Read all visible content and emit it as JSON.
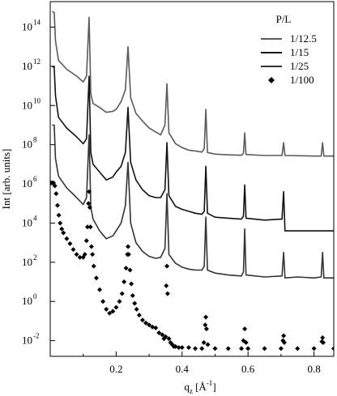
{
  "chart_data": {
    "type": "line",
    "title": "",
    "xlabel": "q_z [Å^-1]",
    "ylabel": "Int [arb. units]",
    "xlim": [
      0.0,
      0.86
    ],
    "yscale": "log",
    "ylim_log10": [
      -2.8,
      15.3
    ],
    "xticks": [
      {
        "value": 0.2,
        "label": "0.2"
      },
      {
        "value": 0.4,
        "label": "0.4"
      },
      {
        "value": 0.6,
        "label": "0.6"
      },
      {
        "value": 0.8,
        "label": "0.8"
      }
    ],
    "yticks": [
      {
        "exp": -2,
        "label": "10^-2"
      },
      {
        "exp": 0,
        "label": "10^0"
      },
      {
        "exp": 2,
        "label": "10^2"
      },
      {
        "exp": 4,
        "label": "10^4"
      },
      {
        "exp": 6,
        "label": "10^6"
      },
      {
        "exp": 8,
        "label": "10^8"
      },
      {
        "exp": 10,
        "label": "10^10"
      },
      {
        "exp": 12,
        "label": "10^12"
      },
      {
        "exp": 14,
        "label": "10^14"
      }
    ],
    "grid": false,
    "legend_title": "P/L",
    "legend_position": "top-right",
    "bragg_peaks_qz": [
      0.118,
      0.236,
      0.354,
      0.472,
      0.59,
      0.708,
      0.826
    ],
    "series": [
      {
        "name": "1/12.5",
        "style": "line",
        "color": "#5a5a5a",
        "points_log10": [
          [
            0.006,
            14.8
          ],
          [
            0.012,
            14.75
          ],
          [
            0.016,
            13.3
          ],
          [
            0.025,
            12.3
          ],
          [
            0.05,
            11.85
          ],
          [
            0.08,
            11.5
          ],
          [
            0.1,
            11.2
          ],
          [
            0.11,
            11.5
          ],
          [
            0.118,
            14.5
          ],
          [
            0.123,
            10.6
          ],
          [
            0.13,
            10.1
          ],
          [
            0.15,
            9.9
          ],
          [
            0.17,
            9.65
          ],
          [
            0.19,
            9.7
          ],
          [
            0.2,
            9.8
          ],
          [
            0.215,
            10.2
          ],
          [
            0.228,
            10.8
          ],
          [
            0.236,
            13.0
          ],
          [
            0.244,
            10.4
          ],
          [
            0.26,
            9.6
          ],
          [
            0.28,
            9.2
          ],
          [
            0.3,
            8.85
          ],
          [
            0.32,
            8.65
          ],
          [
            0.335,
            8.5
          ],
          [
            0.348,
            9.0
          ],
          [
            0.354,
            11.1
          ],
          [
            0.36,
            8.6
          ],
          [
            0.38,
            8.05
          ],
          [
            0.4,
            7.85
          ],
          [
            0.42,
            7.72
          ],
          [
            0.44,
            7.68
          ],
          [
            0.46,
            7.62
          ],
          [
            0.467,
            7.8
          ],
          [
            0.472,
            9.8
          ],
          [
            0.477,
            7.6
          ],
          [
            0.5,
            7.52
          ],
          [
            0.54,
            7.48
          ],
          [
            0.58,
            7.46
          ],
          [
            0.586,
            7.55
          ],
          [
            0.59,
            8.6
          ],
          [
            0.594,
            7.5
          ],
          [
            0.65,
            7.45
          ],
          [
            0.703,
            7.45
          ],
          [
            0.708,
            8.1
          ],
          [
            0.712,
            7.45
          ],
          [
            0.8,
            7.42
          ],
          [
            0.822,
            7.42
          ],
          [
            0.826,
            8.1
          ],
          [
            0.83,
            7.42
          ],
          [
            0.86,
            7.42
          ]
        ]
      },
      {
        "name": "1/15",
        "style": "line",
        "color": "#111111",
        "points_log10": [
          [
            0.006,
            12.0
          ],
          [
            0.012,
            11.95
          ],
          [
            0.016,
            10.5
          ],
          [
            0.025,
            9.4
          ],
          [
            0.05,
            8.85
          ],
          [
            0.08,
            8.4
          ],
          [
            0.1,
            8.05
          ],
          [
            0.11,
            8.3
          ],
          [
            0.118,
            11.5
          ],
          [
            0.123,
            7.6
          ],
          [
            0.13,
            7.0
          ],
          [
            0.15,
            6.6
          ],
          [
            0.17,
            6.2
          ],
          [
            0.19,
            6.35
          ],
          [
            0.2,
            6.6
          ],
          [
            0.215,
            6.9
          ],
          [
            0.228,
            7.6
          ],
          [
            0.236,
            9.9
          ],
          [
            0.244,
            7.1
          ],
          [
            0.26,
            6.2
          ],
          [
            0.28,
            5.7
          ],
          [
            0.3,
            5.4
          ],
          [
            0.32,
            5.3
          ],
          [
            0.335,
            5.3
          ],
          [
            0.348,
            5.7
          ],
          [
            0.354,
            8.1
          ],
          [
            0.36,
            5.4
          ],
          [
            0.38,
            4.85
          ],
          [
            0.4,
            4.7
          ],
          [
            0.42,
            4.6
          ],
          [
            0.44,
            4.5
          ],
          [
            0.46,
            4.45
          ],
          [
            0.467,
            4.6
          ],
          [
            0.472,
            6.9
          ],
          [
            0.477,
            4.5
          ],
          [
            0.5,
            4.3
          ],
          [
            0.54,
            4.25
          ],
          [
            0.58,
            4.2
          ],
          [
            0.586,
            4.35
          ],
          [
            0.59,
            5.95
          ],
          [
            0.594,
            4.25
          ],
          [
            0.65,
            4.15
          ],
          [
            0.7,
            4.2
          ],
          [
            0.703,
            4.2
          ],
          [
            0.708,
            5.6
          ],
          [
            0.712,
            3.6
          ],
          [
            0.8,
            3.6
          ],
          [
            0.86,
            3.6
          ]
        ]
      },
      {
        "name": "1/25",
        "style": "line",
        "color": "#333333",
        "points_log10": [
          [
            0.006,
            9.0
          ],
          [
            0.012,
            9.0
          ],
          [
            0.016,
            7.3
          ],
          [
            0.025,
            6.4
          ],
          [
            0.05,
            5.8
          ],
          [
            0.08,
            5.3
          ],
          [
            0.1,
            4.95
          ],
          [
            0.11,
            5.3
          ],
          [
            0.118,
            8.5
          ],
          [
            0.123,
            4.8
          ],
          [
            0.13,
            4.2
          ],
          [
            0.15,
            3.6
          ],
          [
            0.17,
            3.2
          ],
          [
            0.19,
            3.35
          ],
          [
            0.2,
            3.6
          ],
          [
            0.215,
            4.0
          ],
          [
            0.228,
            4.9
          ],
          [
            0.236,
            7.1
          ],
          [
            0.244,
            4.0
          ],
          [
            0.26,
            3.0
          ],
          [
            0.28,
            2.55
          ],
          [
            0.3,
            2.3
          ],
          [
            0.32,
            2.2
          ],
          [
            0.335,
            2.25
          ],
          [
            0.348,
            2.7
          ],
          [
            0.354,
            5.5
          ],
          [
            0.36,
            2.4
          ],
          [
            0.38,
            1.95
          ],
          [
            0.4,
            1.75
          ],
          [
            0.42,
            1.65
          ],
          [
            0.44,
            1.6
          ],
          [
            0.46,
            1.6
          ],
          [
            0.467,
            1.8
          ],
          [
            0.472,
            4.3
          ],
          [
            0.477,
            1.6
          ],
          [
            0.5,
            1.45
          ],
          [
            0.54,
            1.35
          ],
          [
            0.58,
            1.3
          ],
          [
            0.586,
            1.5
          ],
          [
            0.59,
            3.7
          ],
          [
            0.594,
            1.35
          ],
          [
            0.65,
            1.25
          ],
          [
            0.703,
            1.3
          ],
          [
            0.708,
            2.5
          ],
          [
            0.712,
            1.2
          ],
          [
            0.75,
            1.25
          ],
          [
            0.8,
            1.2
          ],
          [
            0.822,
            1.25
          ],
          [
            0.826,
            2.5
          ],
          [
            0.83,
            1.2
          ],
          [
            0.86,
            1.2
          ]
        ]
      },
      {
        "name": "1/100",
        "style": "markers",
        "marker": "diamond",
        "color": "#000000",
        "points_log10": [
          [
            0.002,
            6.05
          ],
          [
            0.006,
            6.05
          ],
          [
            0.01,
            6.05
          ],
          [
            0.014,
            5.9
          ],
          [
            0.018,
            5.5
          ],
          [
            0.022,
            4.9
          ],
          [
            0.026,
            4.4
          ],
          [
            0.03,
            4.0
          ],
          [
            0.035,
            3.7
          ],
          [
            0.04,
            3.5
          ],
          [
            0.05,
            3.2
          ],
          [
            0.06,
            2.95
          ],
          [
            0.07,
            2.65
          ],
          [
            0.08,
            2.4
          ],
          [
            0.09,
            2.25
          ],
          [
            0.1,
            2.25
          ],
          [
            0.105,
            2.4
          ],
          [
            0.11,
            3.1
          ],
          [
            0.113,
            3.8
          ],
          [
            0.116,
            5.0
          ],
          [
            0.118,
            5.6
          ],
          [
            0.12,
            4.8
          ],
          [
            0.122,
            3.8
          ],
          [
            0.125,
            2.8
          ],
          [
            0.128,
            2.4
          ],
          [
            0.132,
            1.8
          ],
          [
            0.14,
            1.2
          ],
          [
            0.15,
            0.6
          ],
          [
            0.16,
            0.0
          ],
          [
            0.17,
            -0.4
          ],
          [
            0.18,
            -0.6
          ],
          [
            0.19,
            -0.5
          ],
          [
            0.2,
            -0.3
          ],
          [
            0.21,
            0.0
          ],
          [
            0.218,
            0.4
          ],
          [
            0.224,
            1.0
          ],
          [
            0.23,
            1.7
          ],
          [
            0.234,
            2.4
          ],
          [
            0.236,
            2.8
          ],
          [
            0.238,
            2.4
          ],
          [
            0.242,
            1.6
          ],
          [
            0.246,
            0.9
          ],
          [
            0.25,
            0.3
          ],
          [
            0.256,
            -0.1
          ],
          [
            0.262,
            -0.4
          ],
          [
            0.27,
            -0.7
          ],
          [
            0.28,
            -0.95
          ],
          [
            0.29,
            -1.1
          ],
          [
            0.3,
            -1.2
          ],
          [
            0.31,
            -1.3
          ],
          [
            0.32,
            -1.35
          ],
          [
            0.33,
            -1.6
          ],
          [
            0.34,
            -1.7
          ],
          [
            0.345,
            -1.9
          ],
          [
            0.35,
            -1.8
          ],
          [
            0.352,
            0.8
          ],
          [
            0.354,
            1.8
          ],
          [
            0.356,
            0.4
          ],
          [
            0.36,
            -1.9
          ],
          [
            0.365,
            -2.1
          ],
          [
            0.37,
            -2.2
          ],
          [
            0.375,
            -2.3
          ],
          [
            0.38,
            -2.3
          ],
          [
            0.39,
            -2.35
          ],
          [
            0.4,
            -2.35
          ],
          [
            0.42,
            -2.35
          ],
          [
            0.44,
            -2.4
          ],
          [
            0.46,
            -2.4
          ],
          [
            0.466,
            -2.1
          ],
          [
            0.47,
            -1.2
          ],
          [
            0.472,
            -0.8
          ],
          [
            0.474,
            -1.4
          ],
          [
            0.478,
            -2.2
          ],
          [
            0.5,
            -2.4
          ],
          [
            0.54,
            -2.4
          ],
          [
            0.58,
            -2.4
          ],
          [
            0.586,
            -2.0
          ],
          [
            0.59,
            -1.4
          ],
          [
            0.594,
            -2.1
          ],
          [
            0.6,
            -2.4
          ],
          [
            0.65,
            -2.4
          ],
          [
            0.7,
            -2.4
          ],
          [
            0.706,
            -2.0
          ],
          [
            0.708,
            -1.75
          ],
          [
            0.71,
            -2.1
          ],
          [
            0.75,
            -2.4
          ],
          [
            0.8,
            -2.4
          ],
          [
            0.824,
            -2.05
          ],
          [
            0.826,
            -1.85
          ],
          [
            0.828,
            -2.1
          ],
          [
            0.86,
            -2.4
          ]
        ]
      }
    ]
  }
}
